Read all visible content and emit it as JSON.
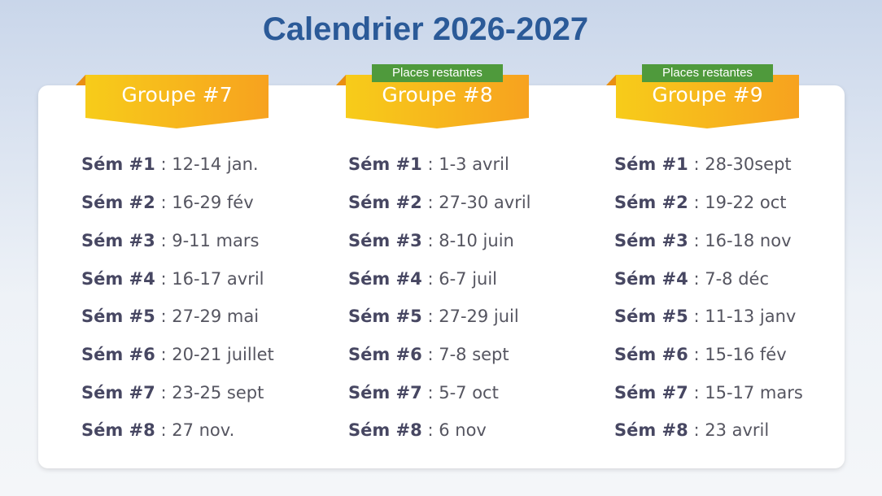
{
  "title": "Calendrier 2026-2027",
  "colors": {
    "title": "#2b5a98",
    "banner_start": "#f7cc1a",
    "banner_end": "#f7a21f",
    "tag": "#4f9a3c"
  },
  "groups": [
    {
      "name": "Groupe #7",
      "tag": null,
      "sessions": [
        {
          "label": "Sém #1",
          "dates": "12-14 jan."
        },
        {
          "label": "Sém #2",
          "dates": "16-29 fév"
        },
        {
          "label": "Sém #3",
          "dates": "9-11 mars"
        },
        {
          "label": "Sém #4",
          "dates": "16-17 avril"
        },
        {
          "label": "Sém #5",
          "dates": "27-29 mai"
        },
        {
          "label": "Sém #6",
          "dates": "20-21 juillet"
        },
        {
          "label": "Sém #7",
          "dates": "23-25 sept"
        },
        {
          "label": "Sém #8",
          "dates": "27 nov."
        }
      ]
    },
    {
      "name": "Groupe #8",
      "tag": "Places restantes",
      "sessions": [
        {
          "label": "Sém #1",
          "dates": "1-3 avril"
        },
        {
          "label": "Sém #2",
          "dates": "27-30 avril"
        },
        {
          "label": "Sém #3",
          "dates": "8-10 juin"
        },
        {
          "label": "Sém #4",
          "dates": "6-7 juil"
        },
        {
          "label": "Sém #5",
          "dates": "27-29 juil"
        },
        {
          "label": "Sém #6",
          "dates": "7-8 sept"
        },
        {
          "label": "Sém #7",
          "dates": "5-7 oct"
        },
        {
          "label": "Sém #8",
          "dates": "6 nov"
        }
      ]
    },
    {
      "name": "Groupe #9",
      "tag": "Places restantes",
      "sessions": [
        {
          "label": "Sém #1",
          "dates": "28-30sept"
        },
        {
          "label": "Sém #2",
          "dates": "19-22 oct"
        },
        {
          "label": "Sém #3",
          "dates": "16-18 nov"
        },
        {
          "label": "Sém #4",
          "dates": "7-8 déc"
        },
        {
          "label": "Sém #5",
          "dates": "11-13 janv"
        },
        {
          "label": "Sém #6",
          "dates": "15-16 fév"
        },
        {
          "label": "Sém #7",
          "dates": "15-17 mars"
        },
        {
          "label": "Sém #8",
          "dates": "23 avril"
        }
      ]
    }
  ]
}
